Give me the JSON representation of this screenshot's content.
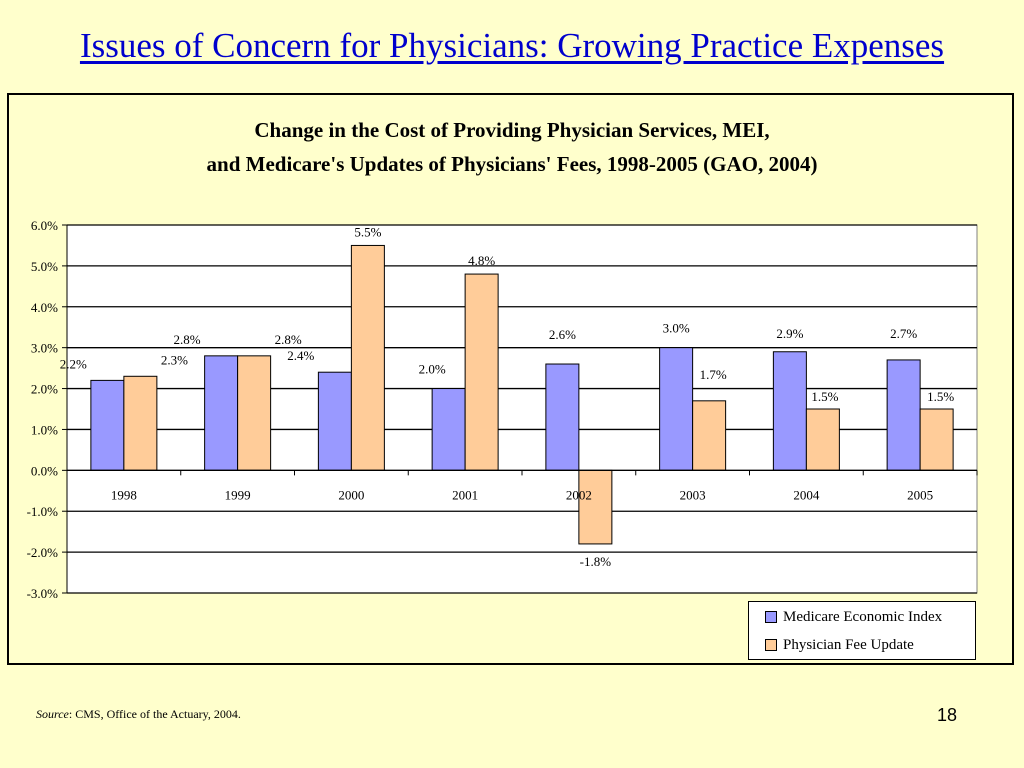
{
  "slide": {
    "title": "Issues of Concern for Physicians: Growing Practice Expenses",
    "page_number": "18",
    "source_label": "Source",
    "source_text": ": CMS, Office of the Actuary, 2004."
  },
  "colors": {
    "background": "#FFFFCC",
    "title": "#0000CC",
    "mei": "#9999FF",
    "fee": "#FFCC99",
    "plot_area": "#FFFFFF"
  },
  "chart_data": {
    "type": "bar",
    "title_line1": "Change in the Cost of Providing Physician Services, MEI,",
    "title_line2": "and Medicare's Updates of Physicians' Fees, 1998-2005 (GAO, 2004)",
    "categories": [
      "1998",
      "1999",
      "2000",
      "2001",
      "2002",
      "2003",
      "2004",
      "2005"
    ],
    "series": [
      {
        "name": "Medicare Economic Index",
        "values": [
          2.2,
          2.8,
          2.4,
          2.0,
          2.6,
          3.0,
          2.9,
          2.7
        ],
        "labels": [
          "2.2%",
          "2.8%",
          "2.4%",
          "2.0%",
          "2.6%",
          "3.0%",
          "2.9%",
          "2.7%"
        ]
      },
      {
        "name": "Physician Fee Update",
        "values": [
          2.3,
          2.8,
          5.5,
          4.8,
          -1.8,
          1.7,
          1.5,
          1.5
        ],
        "labels": [
          "2.3%",
          "2.8%",
          "5.5%",
          "4.8%",
          "-1.8%",
          "1.7%",
          "1.5%",
          "1.5%"
        ]
      }
    ],
    "ylim": [
      -3.0,
      6.0
    ],
    "yticks": [
      6.0,
      5.0,
      4.0,
      3.0,
      2.0,
      1.0,
      0.0,
      -1.0,
      -2.0,
      -3.0
    ],
    "ytick_labels": [
      "6.0%",
      "5.0%",
      "4.0%",
      "3.0%",
      "2.0%",
      "1.0%",
      "0.0%",
      "-1.0%",
      "-2.0%",
      "-3.0%"
    ],
    "grid": true,
    "legend_position": "bottom-right"
  }
}
